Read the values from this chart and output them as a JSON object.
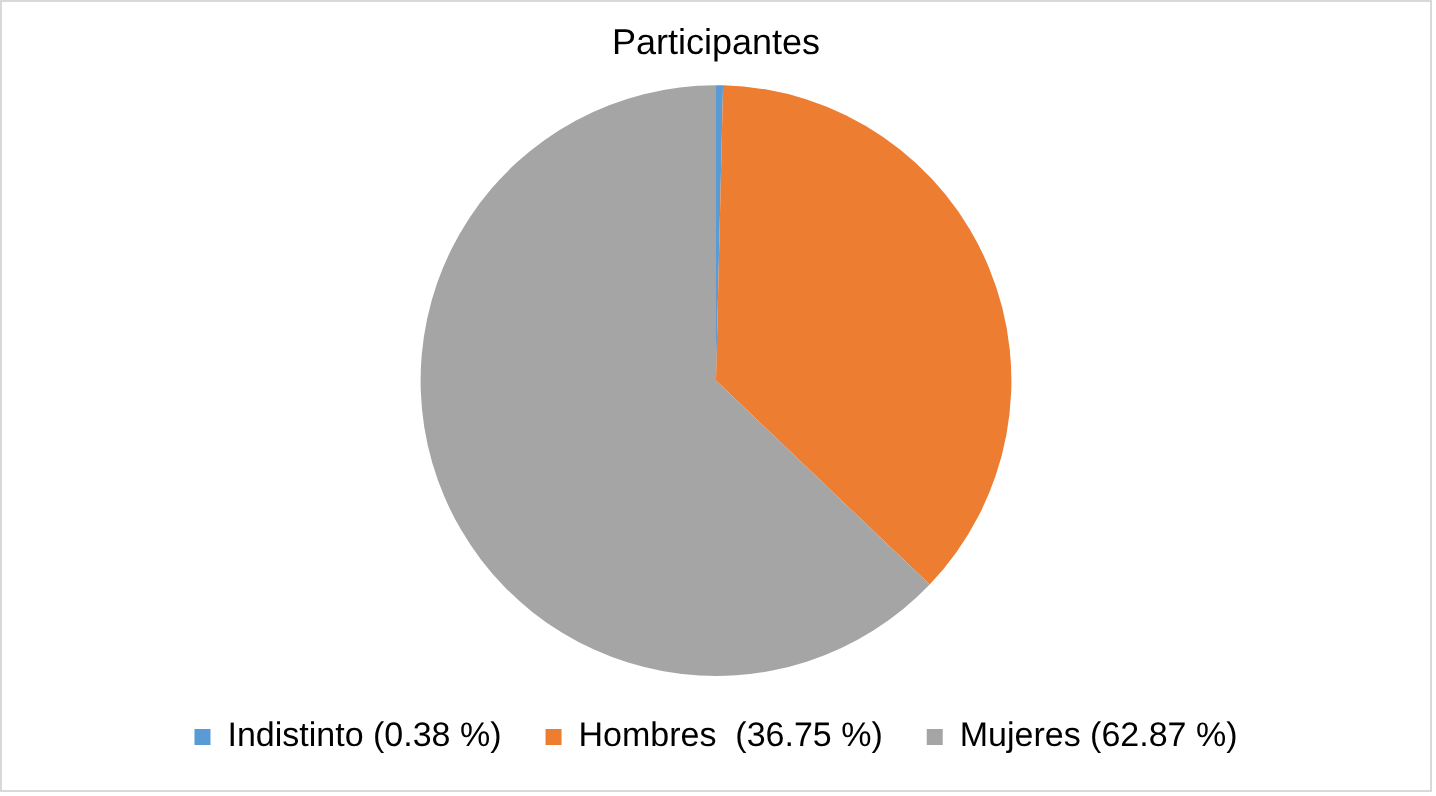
{
  "chart_data": {
    "type": "pie",
    "title": "Participantes",
    "categories": [
      "Indistinto (0.38 %)",
      "Hombres  (36.75 %)",
      "Mujeres (62.87 %)"
    ],
    "values": [
      0.38,
      36.75,
      62.87
    ],
    "colors": [
      "#5b9bd5",
      "#ed7d31",
      "#a5a5a5"
    ],
    "legend": "bottom"
  }
}
